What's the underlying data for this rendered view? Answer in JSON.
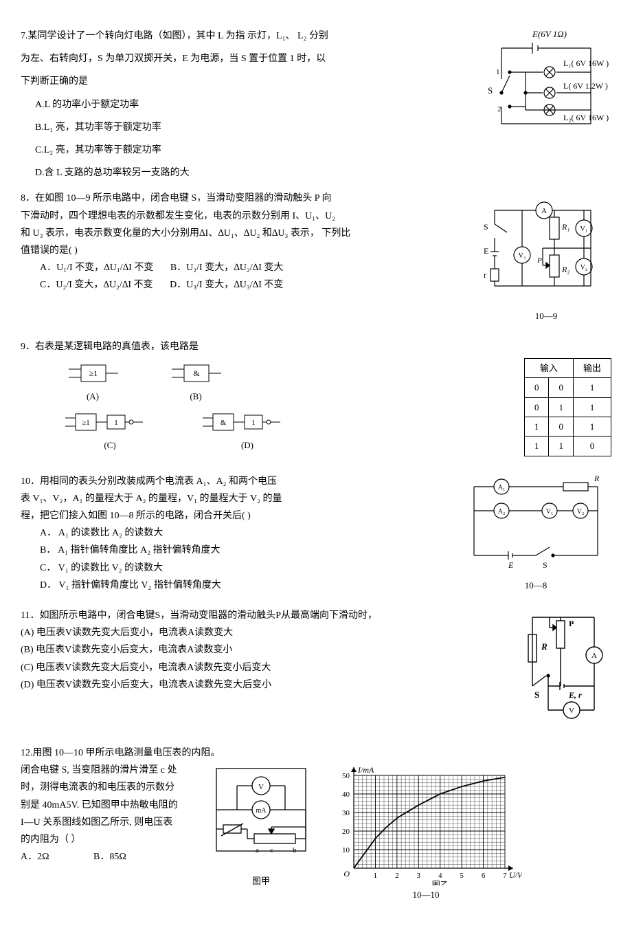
{
  "q7": {
    "stem_l1": "7.某同学设计了一个转向灯电路（如图），其中 L 为指  示灯，L₁、  L₂ 分别",
    "stem_l2": "为左、右转向灯，S 为单刀双掷开关，E 为电源，当 S 置于位置 1 时，以",
    "stem_l3": "下判断正确的是",
    "optA": "A.L 的功率小于额定功率",
    "optB": "B.L₁ 亮，其功率等于额定功率",
    "optC": "C.L₂ 亮，其功率等于额定功率",
    "optD": "D.含 L 支路的总功率较另一支路的大",
    "circuit": {
      "E_label": "E(6V 1Ω)",
      "L1_label": "L₁( 6V 16W )",
      "L_label": "L( 6V 1.2W )",
      "L2_label": "L₂( 6V 16W )",
      "S_label": "S",
      "pos1": "1",
      "pos2": "2"
    }
  },
  "q8": {
    "stem_l1": "8．在如图 10—9 所示电路中，闭合电键 S，当滑动变阻器的滑动触头 P 向",
    "stem_l2": "下滑动时，四个理想电表的示数都发生变化，电表的示数分别用 I、U₁、U₂",
    "stem_l3": "和 U₃ 表示，电表示数变化量的大小分别用∆I、∆U₁、∆U₂ 和∆U₃ 表示，  下列比",
    "stem_l4": "值错误的是(      )",
    "optA": "A．U₁/I 不变，∆U₁/∆I 不变",
    "optB": "B．U₂/I 变大，∆U₂/∆I 变大",
    "optC": "C．U₂/I 变大，∆U₂/∆I 不变",
    "optD": "D．U₃/I 变大，∆U₃/∆I 不变",
    "fig_label": "10—9",
    "labels": {
      "A": "A",
      "S": "S",
      "E": "E",
      "r": "r",
      "R1": "R₁",
      "R2": "R₂",
      "V1": "V₁",
      "V2": "V₂",
      "V3": "V₃",
      "P": "P"
    }
  },
  "q9": {
    "stem": "9．右表是某逻辑电路的真值表，该电路是",
    "gateA_sym": "≥1",
    "gateB_sym": "&",
    "gateC_sym1": "≥1",
    "gateC_sym2": "1",
    "gateD_sym1": "&",
    "gateD_sym2": "1",
    "labA": "(A)",
    "labB": "(B)",
    "labC": "(C)",
    "labD": "(D)",
    "table": {
      "hdr_in": "输入",
      "hdr_out": "输出",
      "rows": [
        [
          "0",
          "0",
          "1"
        ],
        [
          "0",
          "1",
          "1"
        ],
        [
          "1",
          "0",
          "1"
        ],
        [
          "1",
          "1",
          "0"
        ]
      ]
    }
  },
  "q10": {
    "stem_l1": "10．用相同的表头分别改装成两个电流表 A₁、A₂ 和两个电压",
    "stem_l2": "表 V₁、V₂，A₁ 的量程大于 A₂ 的量程，V₁ 的量程大于 V₂ 的量",
    "stem_l3": "程，把它们接入如图 10—8 所示的电路，闭合开关后(      )",
    "optA": "A．  A₁ 的读数比 A₂ 的读数大",
    "optB": "B．  A₁ 指针偏转角度比 A₂ 指针偏转角度大",
    "optC": "C．  V₁ 的读数比 V₂ 的读数大",
    "optD": "D．  V₁ 指针偏转角度比 V₂ 指针偏转角度大",
    "fig_label": "10—8",
    "labels": {
      "A1": "A₁",
      "A2": "A₂",
      "V1": "V₁",
      "V2": "V₂",
      "R": "R",
      "E": "E",
      "S": "S"
    }
  },
  "q11": {
    "stem": "11．如图所示电路中，闭合电键S，当滑动变阻器的滑动触头P从最高端向下滑动时，",
    "optA": "(A) 电压表V读数先变大后变小，电流表A读数变大",
    "optB": "(B) 电压表V读数先变小后变大，电流表A读数变小",
    "optC": "(C) 电压表V读数先变大后变小，电流表A读数先变小后变大",
    "optD": "(D) 电压表V读数先变小后变大，电流表A读数先变大后变小",
    "labels": {
      "P": "P",
      "R": "R",
      "A": "A",
      "S": "S",
      "E": "E, r",
      "V": "V"
    }
  },
  "q12": {
    "stem_l1": "12.用图 10—10 甲所示电路测量电压表的内阻。",
    "stem_l2": "闭合电键 S, 当变阻器的滑片滑至 c 处",
    "stem_l3": "时，测得电流表的和电压表的示数分",
    "stem_l4": "别是 40mA5V. 已知图甲中热敏电阻的",
    "stem_l5": "I—U 关系图线如图乙所示, 则电压表",
    "stem_l6": "的内阻为（     ）",
    "optA": "A．2Ω",
    "optB": "B．85Ω",
    "fig1_label": "图甲",
    "fig_num": "10—10",
    "figB_label": "图乙",
    "graph": {
      "y_label": "I/mA",
      "x_label": "U/V",
      "y_max": 50,
      "y_step": 10,
      "x_max": 7,
      "x_step": 1,
      "curve": [
        [
          0,
          0
        ],
        [
          0.5,
          8
        ],
        [
          1,
          16
        ],
        [
          1.5,
          22
        ],
        [
          2,
          27
        ],
        [
          3,
          34
        ],
        [
          4,
          40
        ],
        [
          5,
          44
        ],
        [
          6,
          47
        ],
        [
          7,
          49
        ]
      ]
    },
    "labels_fig1": {
      "V": "V",
      "mA": "mA",
      "a": "a",
      "c": "c",
      "b": "b"
    }
  }
}
